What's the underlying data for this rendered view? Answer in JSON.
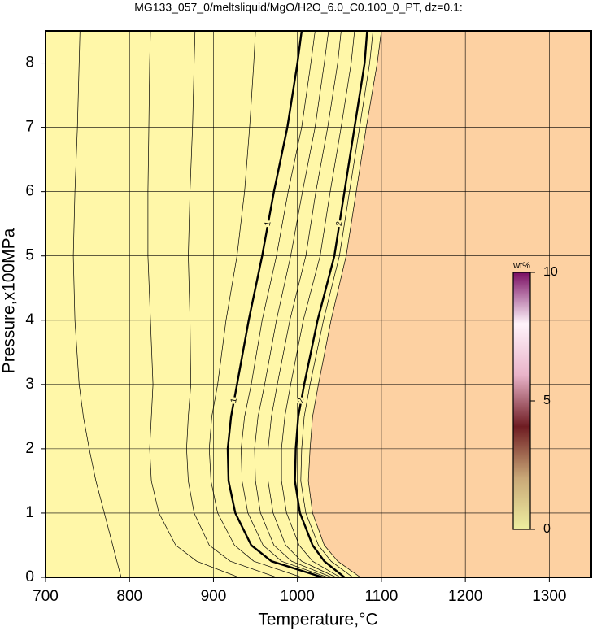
{
  "chart_data": {
    "type": "contour",
    "title": "MG133_057_0/meltsliquid/MgO/H2O_6.0_C0.100_0_PT, dz=0.1:",
    "x_label": "Temperature,°C",
    "y_label": "Pressure,x100MPa",
    "xlim": [
      700,
      1350
    ],
    "ylim": [
      0,
      8.5
    ],
    "xticks": [
      700,
      800,
      900,
      1000,
      1100,
      1200,
      1300
    ],
    "yticks": [
      0,
      1,
      2,
      3,
      4,
      5,
      6,
      7,
      8
    ],
    "grid": true,
    "left_color": "#fff7a8",
    "right_color": "#fdd1a2",
    "y": [
      0,
      0.25,
      0.5,
      1,
      1.5,
      2,
      2.5,
      3,
      4,
      5,
      6,
      7,
      8,
      8.5
    ],
    "contours": [
      {
        "level": 0.2,
        "x": [
          790,
          785,
          780,
          770,
          760,
          752,
          745,
          740,
          735,
          733,
          735,
          738,
          740,
          741
        ]
      },
      {
        "level": 0.4,
        "x": [
          930,
          880,
          855,
          835,
          826,
          824,
          826,
          828,
          825,
          822,
          822,
          823,
          824,
          825
        ]
      },
      {
        "level": 0.6,
        "x": [
          975,
          920,
          895,
          877,
          870,
          868,
          870,
          873,
          872,
          870,
          872,
          875,
          877,
          878
        ]
      },
      {
        "level": 0.8,
        "x": [
          1005,
          948,
          925,
          905,
          897,
          895,
          898,
          905,
          915,
          928,
          937,
          943,
          948,
          950
        ]
      },
      {
        "level": 1,
        "label": "1",
        "x": [
          1030,
          969,
          945,
          926,
          918,
          917,
          921,
          928,
          942,
          958,
          972,
          988,
          1000,
          1005
        ]
      },
      {
        "level": 1.2,
        "x": [
          1036,
          981,
          959,
          941,
          934,
          933,
          937,
          945,
          958,
          975,
          989,
          1005,
          1016,
          1021
        ]
      },
      {
        "level": 1.4,
        "x": [
          1041,
          993,
          972,
          956,
          950,
          949,
          953,
          961,
          975,
          992,
          1006,
          1021,
          1032,
          1037
        ]
      },
      {
        "level": 1.6,
        "x": [
          1046,
          1005,
          986,
          971,
          965,
          965,
          969,
          976,
          991,
          1010,
          1022,
          1036,
          1048,
          1052
        ]
      },
      {
        "level": 1.8,
        "x": [
          1051,
          1018,
          1002,
          987,
          981,
          981,
          985,
          992,
          1007,
          1027,
          1039,
          1052,
          1064,
          1068
        ]
      },
      {
        "level": 2,
        "label": "2",
        "x": [
          1056,
          1032,
          1018,
          1003,
          997,
          998,
          1001,
          1008,
          1024,
          1044,
          1056,
          1068,
          1080,
          1083
        ]
      },
      {
        "level": 2.2,
        "x": [
          1066,
          1040,
          1025,
          1010,
          1004,
          1005,
          1008,
          1015,
          1031,
          1050,
          1062,
          1074,
          1086,
          1090
        ]
      },
      {
        "level": 2.4,
        "x": [
          1075,
          1048,
          1032,
          1018,
          1013,
          1015,
          1018,
          1025,
          1040,
          1058,
          1070,
          1082,
          1095,
          1100
        ]
      }
    ],
    "colorbar": {
      "title": "wt%",
      "lim": [
        0,
        10
      ],
      "ticks": [
        0,
        5,
        10
      ],
      "colors": [
        "#eeeea0",
        "#c9a877",
        "#6e1c22",
        "#e9b3c9",
        "#fff4fb",
        "#7a0d62"
      ]
    }
  }
}
